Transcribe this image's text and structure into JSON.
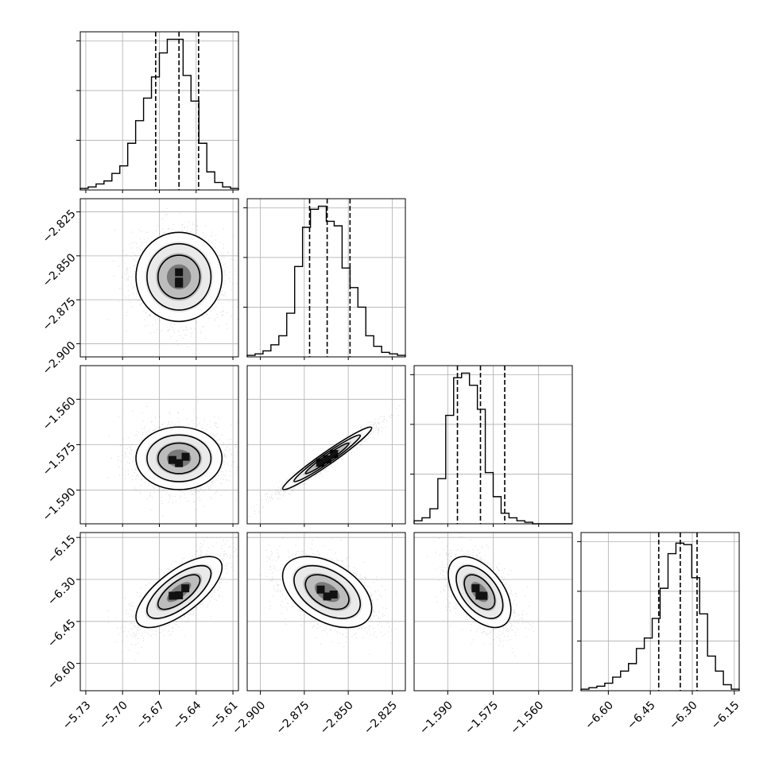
{
  "chart_data": {
    "type": "corner",
    "grid": true,
    "params": [
      {
        "range": [
          -5.7345,
          -5.6055
        ],
        "ticks": [
          -5.73,
          -5.7,
          -5.67,
          -5.64,
          -5.61
        ],
        "tick_labels": [
          "−5.73",
          "−5.70",
          "−5.67",
          "−5.64",
          "−5.61"
        ],
        "quantiles": [
          -5.673,
          -5.654,
          -5.638
        ],
        "hist": [
          0.01,
          0.02,
          0.04,
          0.06,
          0.11,
          0.16,
          0.31,
          0.46,
          0.61,
          0.75,
          0.91,
          1.0,
          1.0,
          0.76,
          0.59,
          0.31,
          0.12,
          0.05,
          0.02,
          0.01
        ],
        "hist_ylim": [
          0,
          1.05
        ],
        "hist_yticks": [
          0.33,
          0.66,
          0.99
        ]
      },
      {
        "range": [
          -2.9075,
          -2.8175
        ],
        "ticks": [
          -2.9,
          -2.875,
          -2.85,
          -2.825
        ],
        "tick_labels": [
          "−2.900",
          "−2.875",
          "−2.850",
          "−2.825"
        ],
        "quantiles": [
          -2.872,
          -2.862,
          -2.849
        ],
        "hist": [
          0.01,
          0.02,
          0.04,
          0.08,
          0.14,
          0.29,
          0.6,
          0.86,
          0.98,
          1.0,
          0.9,
          0.87,
          0.59,
          0.46,
          0.33,
          0.14,
          0.07,
          0.03,
          0.02,
          0.01
        ],
        "hist_ylim": [
          0,
          1.05
        ],
        "hist_yticks": [
          0.33,
          0.66,
          0.99
        ]
      },
      {
        "range": [
          -1.6011,
          -1.5489
        ],
        "ticks": [
          -1.59,
          -1.575,
          -1.56
        ],
        "tick_labels": [
          "−1.590",
          "−1.575",
          "−1.560"
        ],
        "quantiles": [
          -1.5868,
          -1.5792,
          -1.5712
        ],
        "hist": [
          0.02,
          0.04,
          0.1,
          0.3,
          0.72,
          0.97,
          1.0,
          0.92,
          0.76,
          0.34,
          0.18,
          0.07,
          0.04,
          0.02,
          0.01,
          0.0,
          0.0,
          0.0,
          0.0,
          0.0
        ],
        "hist_ylim": [
          0,
          1.05
        ],
        "hist_yticks": [
          0.33,
          0.66,
          0.99
        ]
      },
      {
        "range": [
          -6.6975,
          -6.1325
        ],
        "ticks": [
          -6.6,
          -6.45,
          -6.3,
          -6.15
        ],
        "tick_labels": [
          "−6.60",
          "−6.45",
          "−6.30",
          "−6.15"
        ],
        "quantiles": [
          -6.42,
          -6.343,
          -6.283
        ],
        "hist": [
          0.01,
          0.02,
          0.03,
          0.05,
          0.09,
          0.13,
          0.18,
          0.28,
          0.35,
          0.48,
          0.68,
          0.91,
          0.98,
          0.97,
          0.75,
          0.51,
          0.23,
          0.13,
          0.04,
          0.01
        ],
        "hist_ylim": [
          0,
          1.05
        ],
        "hist_yticks": [
          0.33,
          0.66,
          0.99
        ]
      }
    ],
    "pairs": [
      {
        "row": 1,
        "col": 0,
        "mean": [
          -5.654,
          -2.862
        ],
        "sd": [
          0.018,
          0.013
        ],
        "rho": 0.0
      },
      {
        "row": 2,
        "col": 0,
        "mean": [
          -5.654,
          -1.5795
        ],
        "sd": [
          0.018,
          0.0053
        ],
        "rho": 0.0
      },
      {
        "row": 2,
        "col": 1,
        "mean": [
          -2.862,
          -1.5795
        ],
        "sd": [
          0.013,
          0.0053
        ],
        "rho": 0.97
      },
      {
        "row": 3,
        "col": 0,
        "mean": [
          -5.654,
          -6.345
        ],
        "sd": [
          0.018,
          0.065
        ],
        "rho": 0.7
      },
      {
        "row": 3,
        "col": 1,
        "mean": [
          -2.862,
          -6.345
        ],
        "sd": [
          0.013,
          0.065
        ],
        "rho": -0.45
      },
      {
        "row": 3,
        "col": 2,
        "mean": [
          -1.5795,
          -6.345
        ],
        "sd": [
          0.0053,
          0.065
        ],
        "rho": -0.5
      }
    ]
  }
}
